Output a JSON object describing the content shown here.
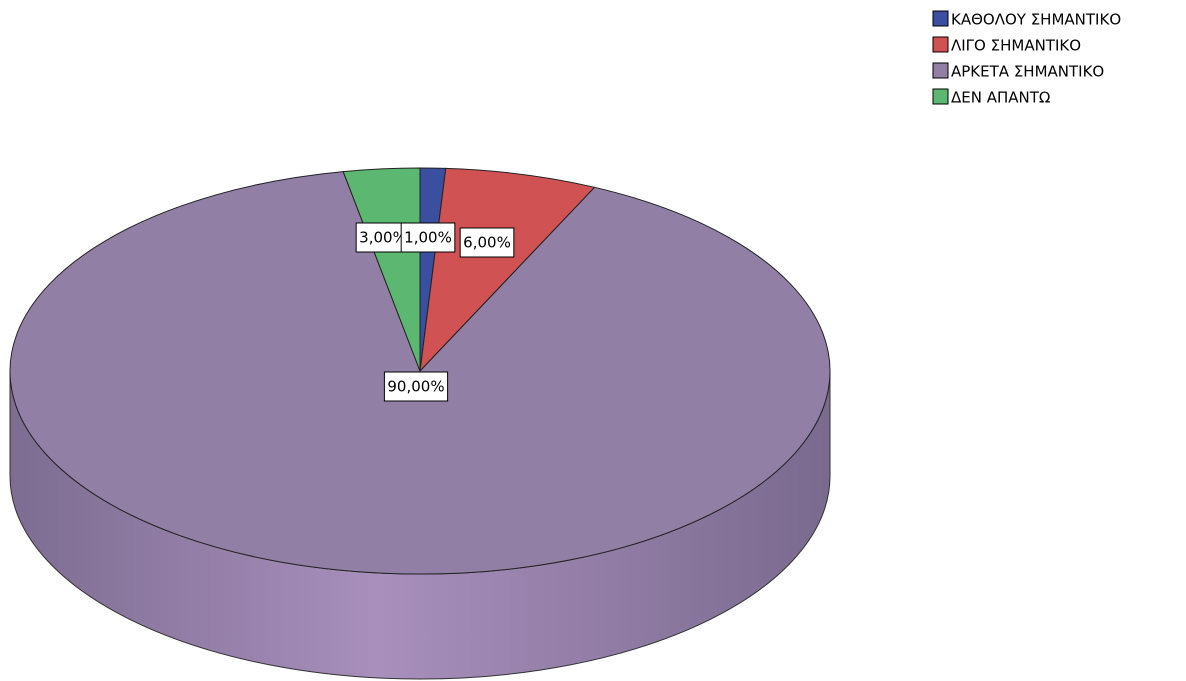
{
  "chart_data": {
    "type": "pie",
    "categories": [
      "ΚΑΘΟΛΟΥ ΣΗΜΑΝΤΙΚΟ",
      "ΛΙΓΟ ΣΗΜΑΝΤΙΚΟ",
      "ΑΡΚΕΤΑ ΣΗΜΑΝΤΙΚΟ",
      "ΔΕΝ ΑΠΑΝΤΩ"
    ],
    "values": [
      1,
      6,
      90,
      3
    ],
    "value_labels": [
      "1,00%",
      "6,00%",
      "90,00%",
      "3,00%"
    ],
    "colors": [
      "#3a4fa0",
      "#d05252",
      "#927fa6",
      "#5cb870"
    ],
    "legend": "top-right"
  }
}
